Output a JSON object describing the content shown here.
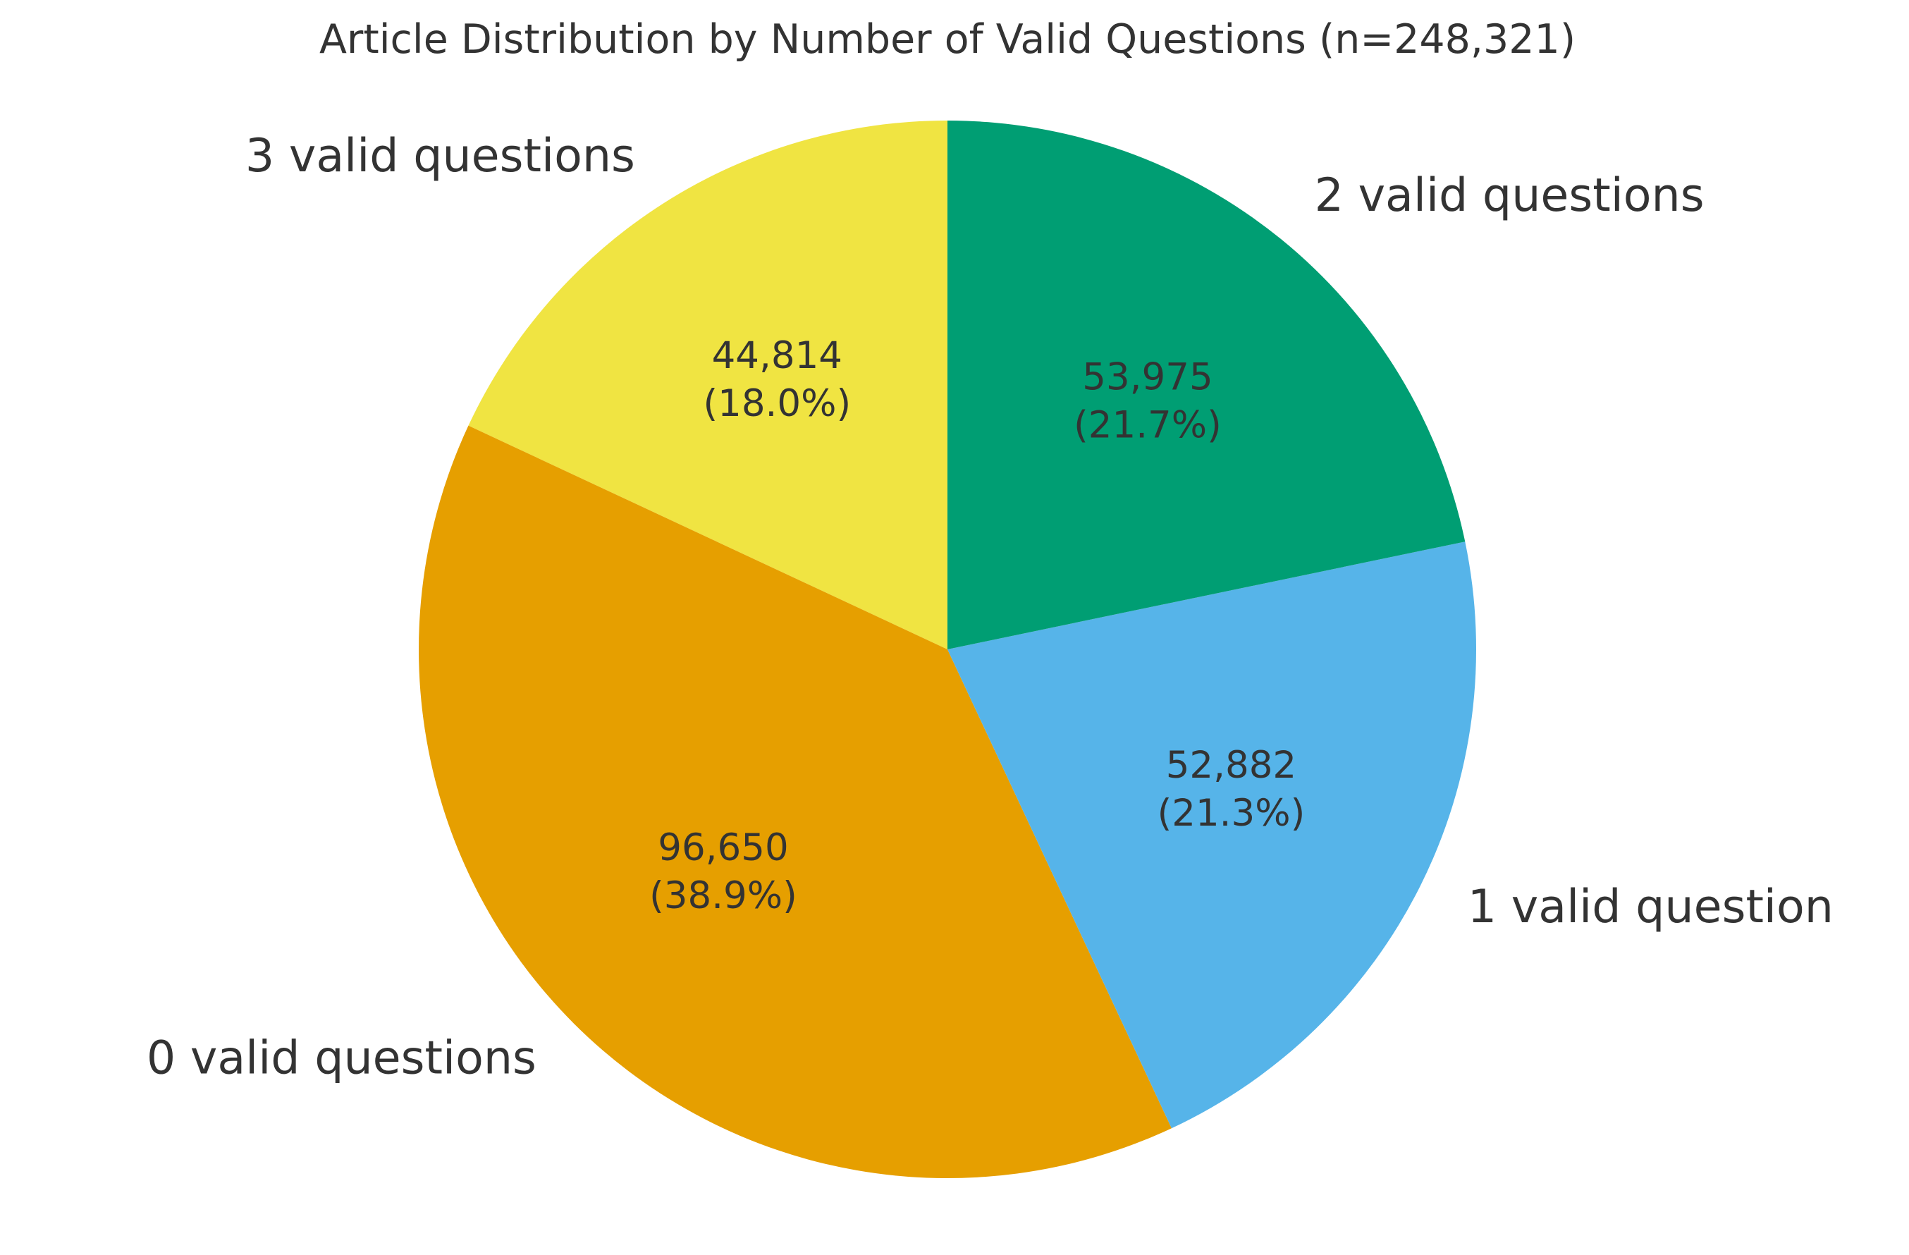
{
  "chart_data": {
    "type": "pie",
    "title": "Article Distribution by Number of Valid Questions (n=248,321)",
    "start_angle_deg": 90,
    "direction": "counterclockwise",
    "slices": [
      {
        "label": "3 valid questions",
        "value": 44814,
        "value_text": "44,814",
        "percent_text": "(18.0%)",
        "color": "#F0E442"
      },
      {
        "label": "0 valid questions",
        "value": 96650,
        "value_text": "96,650",
        "percent_text": "(38.9%)",
        "color": "#E69F00"
      },
      {
        "label": "1 valid question",
        "value": 52882,
        "value_text": "52,882",
        "percent_text": "(21.3%)",
        "color": "#56B4E9"
      },
      {
        "label": "2 valid questions",
        "value": 53975,
        "value_text": "53,975",
        "percent_text": "(21.7%)",
        "color": "#009E73"
      }
    ],
    "text_color": "#333333",
    "legend": "none"
  }
}
